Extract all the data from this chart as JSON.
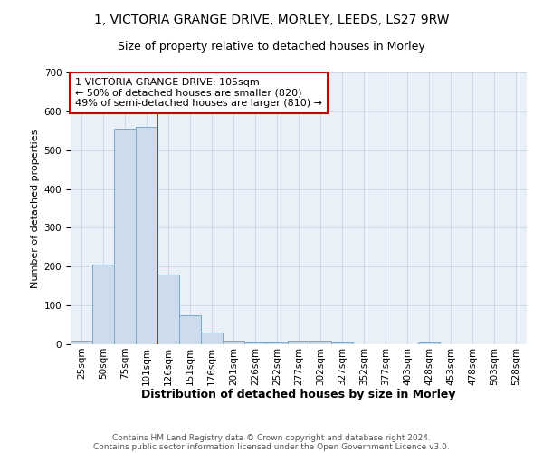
{
  "title1": "1, VICTORIA GRANGE DRIVE, MORLEY, LEEDS, LS27 9RW",
  "title2": "Size of property relative to detached houses in Morley",
  "xlabel": "Distribution of detached houses by size in Morley",
  "ylabel": "Number of detached properties",
  "bar_labels": [
    "25sqm",
    "50sqm",
    "75sqm",
    "101sqm",
    "126sqm",
    "151sqm",
    "176sqm",
    "201sqm",
    "226sqm",
    "252sqm",
    "277sqm",
    "302sqm",
    "327sqm",
    "352sqm",
    "377sqm",
    "403sqm",
    "428sqm",
    "453sqm",
    "478sqm",
    "503sqm",
    "528sqm"
  ],
  "bar_values": [
    10,
    205,
    555,
    560,
    180,
    75,
    30,
    10,
    5,
    5,
    10,
    10,
    5,
    0,
    0,
    0,
    5,
    0,
    0,
    0,
    0
  ],
  "bar_color": "#ccdcec",
  "bar_edgecolor": "#7aaac8",
  "annotation_text": "1 VICTORIA GRANGE DRIVE: 105sqm\n← 50% of detached houses are smaller (820)\n49% of semi-detached houses are larger (810) →",
  "annotation_box_edgecolor": "#cc0000",
  "vline_color": "#cc0000",
  "vline_x_index": 3,
  "grid_color": "#c8d4e4",
  "background_color": "#eaf0f8",
  "ylim": [
    0,
    700
  ],
  "yticks": [
    0,
    100,
    200,
    300,
    400,
    500,
    600,
    700
  ],
  "footer1": "Contains HM Land Registry data © Crown copyright and database right 2024.",
  "footer2": "Contains public sector information licensed under the Open Government Licence v3.0.",
  "title1_fontsize": 10,
  "title2_fontsize": 9,
  "xlabel_fontsize": 9,
  "ylabel_fontsize": 8,
  "tick_fontsize": 7.5,
  "annotation_fontsize": 8,
  "footer_fontsize": 6.5
}
